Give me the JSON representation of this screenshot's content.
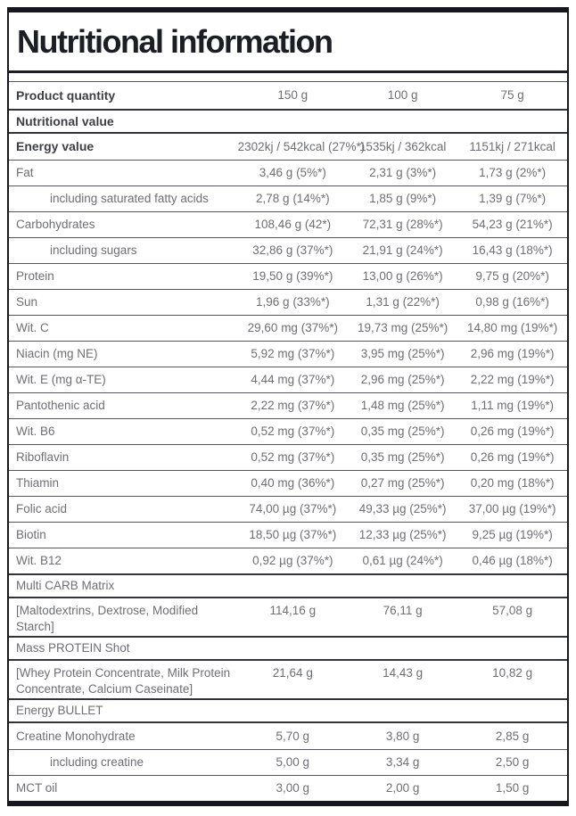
{
  "title": "Nutritional information",
  "table": {
    "header": {
      "label": "Product quantity",
      "col1": "150 g",
      "col2": "100 g",
      "col3": "75 g"
    },
    "rows": [
      {
        "type": "section",
        "bold": true,
        "label": "Nutritional value"
      },
      {
        "type": "data",
        "bold": true,
        "label": "Energy value",
        "values": [
          "2302kj / 542kcal (27%*)",
          "1535kj / 362kcal",
          "1151kj / 271kcal"
        ]
      },
      {
        "type": "data",
        "label": "Fat",
        "values": [
          "3,46 g (5%*)",
          "2,31 g (3%*)",
          "1,73 g (2%*)"
        ]
      },
      {
        "type": "data",
        "indent": true,
        "label": "including saturated fatty acids",
        "values": [
          "2,78 g (14%*)",
          "1,85 g (9%*)",
          "1,39 g (7%*)"
        ]
      },
      {
        "type": "data",
        "label": "Carbohydrates",
        "values": [
          "108,46 g (42*)",
          "72,31 g (28%*)",
          "54,23 g (21%*)"
        ]
      },
      {
        "type": "data",
        "indent": true,
        "label": "including sugars",
        "values": [
          "32,86 g (37%*)",
          "21,91 g (24%*)",
          "16,43 g (18%*)"
        ]
      },
      {
        "type": "data",
        "label": "Protein",
        "values": [
          "19,50 g (39%*)",
          "13,00 g (26%*)",
          "9,75 g (20%*)"
        ]
      },
      {
        "type": "data",
        "label": "Sun",
        "values": [
          "1,96 g (33%*)",
          "1,31 g (22%*)",
          "0,98 g (16%*)"
        ]
      },
      {
        "type": "data",
        "label": "Wit. C",
        "values": [
          "29,60 mg (37%*)",
          "19,73 mg (25%*)",
          "14,80 mg (19%*)"
        ]
      },
      {
        "type": "data",
        "label": "Niacin (mg NE)",
        "values": [
          "5,92 mg (37%*)",
          "3,95 mg (25%*)",
          "2,96 mg (19%*)"
        ]
      },
      {
        "type": "data",
        "label": "Wit. E (mg α-TE)",
        "values": [
          "4,44 mg (37%*)",
          "2,96 mg (25%*)",
          "2,22 mg (19%*)"
        ]
      },
      {
        "type": "data",
        "label": "Pantothenic acid",
        "values": [
          "2,22 mg (37%*)",
          "1,48 mg (25%*)",
          "1,11 mg (19%*)"
        ]
      },
      {
        "type": "data",
        "label": "Wit. B6",
        "values": [
          "0,52 mg (37%*)",
          "0,35 mg (25%*)",
          "0,26 mg (19%*)"
        ]
      },
      {
        "type": "data",
        "label": "Riboflavin",
        "values": [
          "0,52 mg (37%*)",
          "0,35 mg (25%*)",
          "0,26 mg (19%*)"
        ]
      },
      {
        "type": "data",
        "label": "Thiamin",
        "values": [
          "0,40 mg (36%*)",
          "0,27 mg (25%*)",
          "0,20 mg (18%*)"
        ]
      },
      {
        "type": "data",
        "label": "Folic acid",
        "values": [
          "74,00 µg (37%*)",
          "49,33 µg (25%*)",
          "37,00 µg (19%*)"
        ]
      },
      {
        "type": "data",
        "label": "Biotin",
        "values": [
          "18,50 µg (37%*)",
          "12,33 µg (25%*)",
          "9,25 µg (19%*)"
        ]
      },
      {
        "type": "data",
        "label": "Wit. B12",
        "values": [
          "0,92 µg (37%*)",
          "0,61 µg (24%*)",
          "0,46 µg (18%*)"
        ]
      },
      {
        "type": "section",
        "label": "Multi CARB Matrix"
      },
      {
        "type": "data",
        "label": "[Maltodextrins, Dextrose, Modified Starch]",
        "values": [
          "114,16 g",
          "76,11 g",
          "57,08 g"
        ]
      },
      {
        "type": "section",
        "label": "Mass PROTEIN Shot"
      },
      {
        "type": "data",
        "label": "[Whey Protein Concentrate, Milk Protein Concentrate, Calcium Caseinate]",
        "values": [
          "21,64 g",
          "14,43 g",
          "10,82 g"
        ]
      },
      {
        "type": "section",
        "label": "Energy BULLET"
      },
      {
        "type": "data",
        "label": "Creatine Monohydrate",
        "values": [
          "5,70 g",
          "3,80 g",
          "2,85 g"
        ]
      },
      {
        "type": "data",
        "indent": true,
        "label": "including creatine",
        "values": [
          "5,00 g",
          "3,34 g",
          "2,50 g"
        ]
      },
      {
        "type": "data",
        "label": "MCT oil",
        "values": [
          "3,00 g",
          "2,00 g",
          "1,50 g"
        ]
      }
    ]
  }
}
